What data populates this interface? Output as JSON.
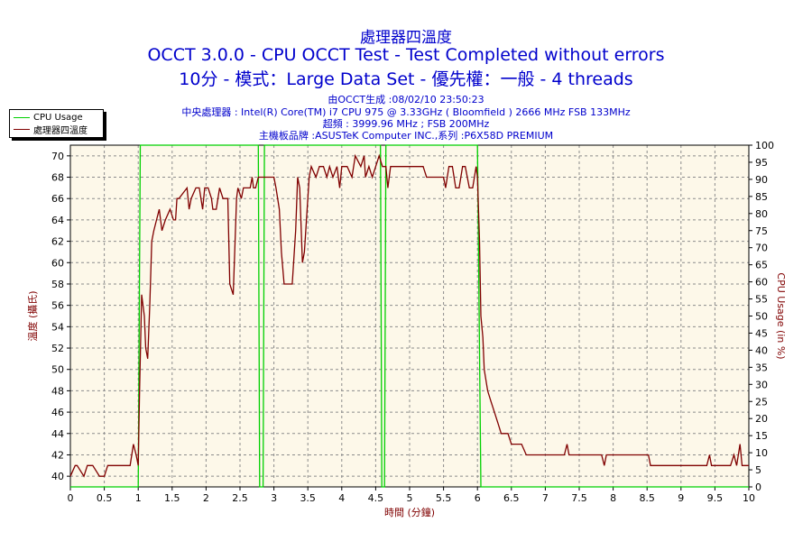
{
  "header": {
    "title_cn": "處理器四溫度",
    "title_main": "OCCT 3.0.0 - CPU OCCT Test - Test Completed without errors",
    "title_sub": "10分 - 模式：Large Data Set - 優先權：一般 - 4 threads",
    "info_generated": "由OCCT生成 :08/02/10 23:50:23",
    "info_cpu": "中央處理器 : Intel(R) Core(TM) i7 CPU 975 @ 3.33GHz ( Bloomfield ) 2666 MHz FSB 133MHz",
    "info_freq": "超頻 : 3999.96 MHz ; FSB 200MHz",
    "info_board": "主機板品牌 :ASUSTeK Computer INC.,系列 :P6X58D PREMIUM"
  },
  "colors": {
    "temperature": "#800000",
    "cpu_usage": "#00d000",
    "plot_bg": "#fdf8e9",
    "text": "#0000cc",
    "grid": "#8c8c8c"
  },
  "chart_data": {
    "type": "line",
    "xlabel": "時間 (分鐘)",
    "ylabel_left": "溫度 (攝氏)",
    "ylabel_right": "CPU Usage (in %)",
    "xlim": [
      0,
      10
    ],
    "ylim_left": [
      39,
      71
    ],
    "ylim_right": [
      0,
      100
    ],
    "x_ticks": [
      0,
      0.5,
      1,
      1.5,
      2,
      2.5,
      3,
      3.5,
      4,
      4.5,
      5,
      5.5,
      6,
      6.5,
      7,
      7.5,
      8,
      8.5,
      9,
      9.5,
      10
    ],
    "y_left_ticks": [
      40,
      42,
      44,
      46,
      48,
      50,
      52,
      54,
      56,
      58,
      60,
      62,
      64,
      66,
      68,
      70
    ],
    "y_right_ticks": [
      0,
      5,
      10,
      15,
      20,
      25,
      30,
      35,
      40,
      45,
      50,
      55,
      60,
      65,
      70,
      75,
      80,
      85,
      90,
      95,
      100
    ],
    "grid": true,
    "legend_position": "top-left",
    "series": [
      {
        "name": "CPU Usage",
        "axis": "right",
        "x": [
          0,
          1.0,
          1.03,
          2.77,
          2.79,
          2.84,
          2.86,
          4.57,
          4.59,
          4.63,
          4.65,
          6.0,
          6.05,
          10
        ],
        "y": [
          0,
          0,
          100,
          100,
          0,
          0,
          100,
          100,
          0,
          0,
          100,
          100,
          0,
          0
        ]
      },
      {
        "name": "處理器四溫度",
        "axis": "left",
        "x": [
          0,
          0.07,
          0.1,
          0.2,
          0.25,
          0.33,
          0.43,
          0.5,
          0.55,
          0.88,
          0.93,
          0.97,
          1.0,
          1.02,
          1.05,
          1.09,
          1.11,
          1.14,
          1.17,
          1.2,
          1.23,
          1.27,
          1.31,
          1.35,
          1.4,
          1.47,
          1.52,
          1.55,
          1.57,
          1.6,
          1.72,
          1.75,
          1.78,
          1.85,
          1.9,
          1.95,
          1.98,
          2.03,
          2.08,
          2.1,
          2.15,
          2.2,
          2.25,
          2.32,
          2.35,
          2.4,
          2.45,
          2.47,
          2.52,
          2.55,
          2.6,
          2.65,
          2.68,
          2.7,
          2.73,
          2.77,
          2.9,
          3.0,
          3.03,
          3.08,
          3.11,
          3.15,
          3.17,
          3.2,
          3.27,
          3.32,
          3.35,
          3.38,
          3.42,
          3.45,
          3.52,
          3.55,
          3.62,
          3.67,
          3.73,
          3.78,
          3.82,
          3.87,
          3.93,
          3.97,
          4.0,
          4.08,
          4.15,
          4.2,
          4.28,
          4.33,
          4.35,
          4.4,
          4.45,
          4.5,
          4.55,
          4.6,
          4.65,
          4.68,
          4.72,
          4.78,
          4.82,
          4.87,
          5.2,
          5.25,
          5.5,
          5.53,
          5.58,
          5.63,
          5.68,
          5.73,
          5.78,
          5.82,
          5.88,
          5.93,
          5.98,
          6.0,
          6.03,
          6.05,
          6.08,
          6.1,
          6.15,
          6.2,
          6.25,
          6.3,
          6.35,
          6.45,
          6.5,
          6.6,
          6.65,
          6.72,
          6.78,
          6.9,
          7.25,
          7.28,
          7.32,
          7.35,
          7.8,
          7.83,
          7.87,
          7.9,
          8.48,
          8.52,
          8.55,
          8.58,
          9.35,
          9.38,
          9.42,
          9.45,
          9.7,
          9.73,
          9.78,
          9.82,
          9.87,
          9.9,
          9.95,
          10
        ],
        "y": [
          40,
          41,
          41,
          40,
          41,
          41,
          40,
          40,
          41,
          41,
          43,
          42,
          41,
          48,
          57,
          55,
          52,
          51,
          56,
          62,
          63,
          64,
          65,
          63,
          64,
          65,
          64,
          64,
          66,
          66,
          67,
          65,
          66,
          67,
          67,
          65,
          67,
          67,
          66,
          65,
          65,
          67,
          66,
          66,
          58,
          57,
          66,
          67,
          66,
          67,
          67,
          67,
          68,
          67,
          67,
          68,
          68,
          68,
          67,
          65,
          61,
          58,
          58,
          58,
          58,
          63,
          68,
          67,
          60,
          61,
          68,
          69,
          68,
          69,
          69,
          68,
          69,
          68,
          69,
          67,
          69,
          69,
          68,
          70,
          69,
          70,
          68,
          69,
          68,
          69,
          70,
          69,
          69,
          67,
          69,
          69,
          69,
          69,
          69,
          68,
          68,
          67,
          69,
          69,
          67,
          67,
          69,
          69,
          67,
          67,
          69,
          68,
          62,
          55,
          53,
          50,
          48,
          47,
          46,
          45,
          44,
          44,
          43,
          43,
          43,
          42,
          42,
          42,
          42,
          42,
          43,
          42,
          42,
          42,
          41,
          42,
          42,
          42,
          41,
          41,
          41,
          41,
          42,
          41,
          41,
          41,
          42,
          41,
          43,
          41,
          41,
          41
        ]
      }
    ]
  }
}
